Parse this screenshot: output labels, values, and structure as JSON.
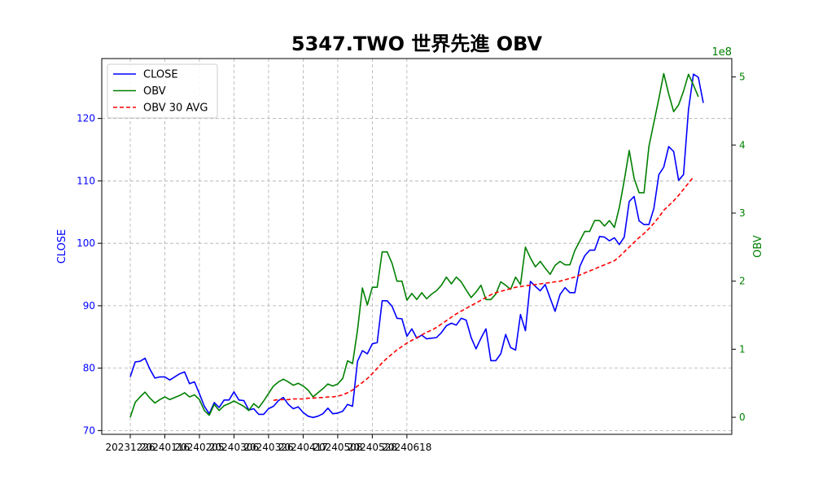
{
  "chart_data": {
    "type": "line",
    "title": "5347.TWO 世界先進 OBV",
    "xlabel": "",
    "ylabel": "CLOSE",
    "ylabel_right": "OBV",
    "right_axis_multiplier": "1e8",
    "grid": true,
    "legend_position": "top-left",
    "x_tick_labels": [
      "20231226",
      "20240116",
      "20240205",
      "20240306",
      "20240326",
      "20240417",
      "20240508",
      "20240528",
      "20240618"
    ],
    "y_ticks_left": [
      70,
      80,
      90,
      100,
      110,
      120
    ],
    "y_ticks_right": [
      0,
      1,
      2,
      3,
      4,
      5
    ],
    "ylim_left": [
      69.4,
      129.6
    ],
    "ylim_right": [
      -0.25,
      5.27
    ],
    "colors": {
      "close": "#0000ff",
      "obv": "#008000",
      "obv_avg": "#ff0000",
      "left_axis": "#0000ff",
      "right_axis": "#008000"
    },
    "series": [
      {
        "name": "CLOSE",
        "axis": "left",
        "values": [
          78.6,
          81.0,
          81.1,
          81.6,
          79.8,
          78.4,
          78.6,
          78.6,
          78.1,
          78.6,
          79.1,
          79.4,
          77.5,
          77.8,
          75.9,
          73.9,
          72.7,
          74.5,
          73.7,
          74.9,
          74.9,
          76.2,
          74.9,
          74.8,
          73.3,
          73.5,
          72.6,
          72.6,
          73.5,
          73.9,
          74.8,
          75.3,
          74.2,
          73.5,
          73.8,
          72.9,
          72.3,
          72.1,
          72.3,
          72.7,
          73.6,
          72.7,
          72.8,
          73.1,
          74.2,
          73.9,
          81.1,
          82.8,
          82.3,
          83.9,
          84.1,
          90.8,
          90.8,
          89.9,
          88.0,
          87.9,
          85.1,
          86.3,
          84.8,
          85.3,
          84.7,
          84.8,
          84.9,
          85.7,
          86.8,
          87.2,
          86.9,
          88.0,
          87.7,
          84.9,
          83.1,
          84.8,
          86.3,
          81.2,
          81.2,
          82.3,
          85.4,
          83.3,
          82.9,
          88.6,
          86.0,
          93.9,
          93.1,
          92.4,
          93.4,
          91.2,
          89.1,
          91.8,
          92.9,
          92.1,
          92.1,
          96.3,
          98.0,
          98.9,
          98.9,
          101.1,
          101.0,
          100.4,
          100.9,
          99.8,
          101.0,
          106.7,
          107.5,
          103.6,
          103.0,
          103.0,
          105.6,
          111.0,
          112.2,
          115.5,
          114.7,
          110.1,
          111.0,
          121.4,
          127.1,
          126.6,
          122.5
        ]
      },
      {
        "name": "OBV",
        "axis": "right",
        "values": [
          0.0,
          0.22,
          0.3,
          0.37,
          0.28,
          0.21,
          0.26,
          0.3,
          0.26,
          0.29,
          0.32,
          0.36,
          0.3,
          0.33,
          0.26,
          0.1,
          0.03,
          0.19,
          0.1,
          0.17,
          0.2,
          0.24,
          0.2,
          0.16,
          0.1,
          0.2,
          0.14,
          0.24,
          0.35,
          0.46,
          0.52,
          0.56,
          0.52,
          0.47,
          0.5,
          0.46,
          0.4,
          0.3,
          0.36,
          0.42,
          0.49,
          0.46,
          0.49,
          0.57,
          0.83,
          0.79,
          1.28,
          1.9,
          1.65,
          1.91,
          1.91,
          2.43,
          2.43,
          2.26,
          2.0,
          2.0,
          1.72,
          1.82,
          1.73,
          1.83,
          1.74,
          1.81,
          1.86,
          1.94,
          2.06,
          1.96,
          2.06,
          1.99,
          1.87,
          1.76,
          1.84,
          1.94,
          1.73,
          1.73,
          1.81,
          1.99,
          1.94,
          1.88,
          2.06,
          1.95,
          2.5,
          2.34,
          2.21,
          2.29,
          2.19,
          2.1,
          2.23,
          2.29,
          2.24,
          2.24,
          2.45,
          2.59,
          2.73,
          2.73,
          2.89,
          2.89,
          2.81,
          2.89,
          2.79,
          3.08,
          3.48,
          3.92,
          3.51,
          3.3,
          3.3,
          3.98,
          4.33,
          4.68,
          5.05,
          4.75,
          4.49,
          4.59,
          4.79,
          5.04,
          4.88,
          4.71
        ]
      },
      {
        "name": "OBV 30 AVG",
        "axis": "right",
        "start_index": 29,
        "values": [
          0.25,
          0.26,
          0.26,
          0.26,
          0.27,
          0.27,
          0.27,
          0.28,
          0.28,
          0.29,
          0.29,
          0.3,
          0.3,
          0.31,
          0.33,
          0.36,
          0.4,
          0.46,
          0.51,
          0.57,
          0.64,
          0.72,
          0.8,
          0.87,
          0.93,
          0.99,
          1.04,
          1.09,
          1.13,
          1.17,
          1.21,
          1.25,
          1.28,
          1.32,
          1.37,
          1.42,
          1.47,
          1.52,
          1.56,
          1.6,
          1.64,
          1.68,
          1.72,
          1.76,
          1.8,
          1.83,
          1.85,
          1.87,
          1.89,
          1.91,
          1.92,
          1.93,
          1.94,
          1.95,
          1.96,
          1.97,
          1.98,
          1.99,
          2.0,
          2.02,
          2.04,
          2.06,
          2.09,
          2.12,
          2.15,
          2.18,
          2.21,
          2.24,
          2.27,
          2.3,
          2.36,
          2.43,
          2.5,
          2.57,
          2.64,
          2.7,
          2.77,
          2.85,
          2.94,
          3.04,
          3.11,
          3.18,
          3.26,
          3.35,
          3.44,
          3.53
        ]
      }
    ]
  }
}
